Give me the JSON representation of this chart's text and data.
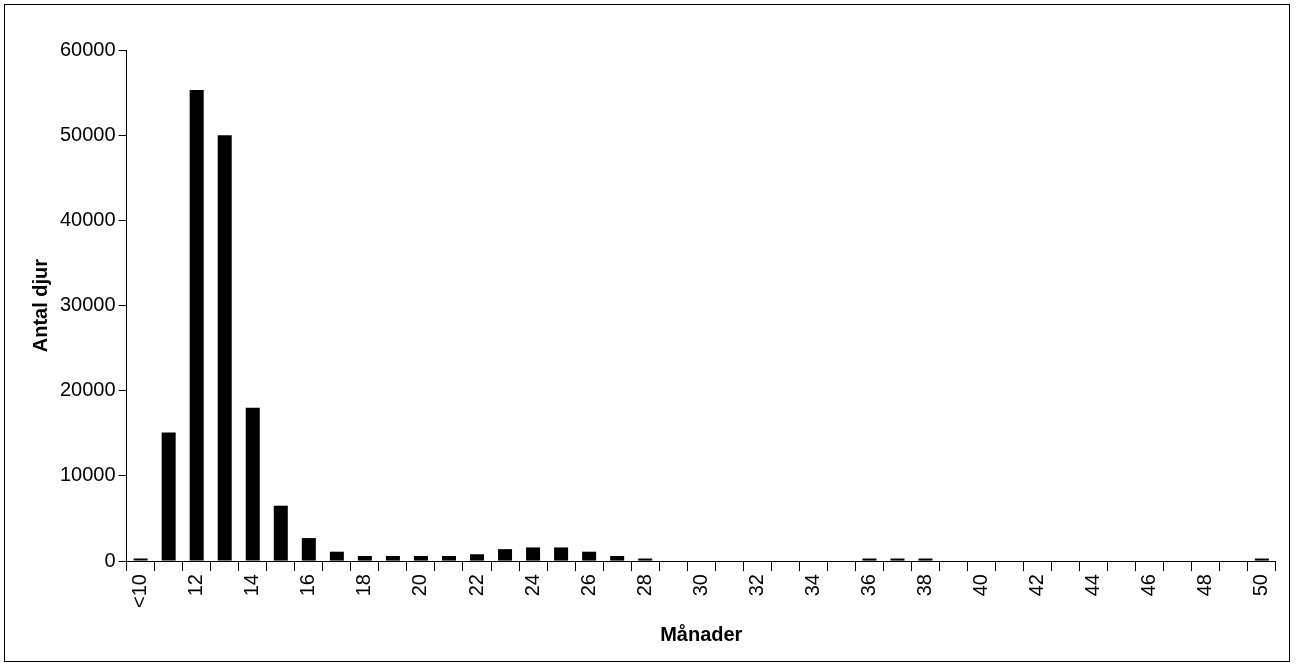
{
  "chart_data": {
    "type": "bar",
    "xlabel": "Månader",
    "ylabel": "Antal djur",
    "categories": [
      "<10",
      null,
      "12",
      null,
      "14",
      null,
      "16",
      null,
      "18",
      null,
      "20",
      null,
      "22",
      null,
      "24",
      null,
      "26",
      null,
      "28",
      null,
      "30",
      null,
      "32",
      null,
      "34",
      null,
      "36",
      null,
      "38",
      null,
      "40",
      null,
      "42",
      null,
      "44",
      null,
      "46",
      null,
      "48",
      null,
      "50"
    ],
    "values": [
      300,
      15100,
      55300,
      50000,
      18000,
      6500,
      2700,
      1100,
      600,
      600,
      600,
      600,
      800,
      1400,
      1600,
      1600,
      1100,
      600,
      300,
      0,
      0,
      0,
      0,
      0,
      0,
      0,
      300,
      300,
      300,
      0,
      0,
      0,
      0,
      0,
      0,
      0,
      0,
      0,
      0,
      0,
      300
    ],
    "color": "#000000",
    "ylim": [
      0,
      60000
    ],
    "yticks": [
      0,
      10000,
      20000,
      30000,
      40000,
      50000,
      60000
    ],
    "grid": false,
    "legend": false
  }
}
